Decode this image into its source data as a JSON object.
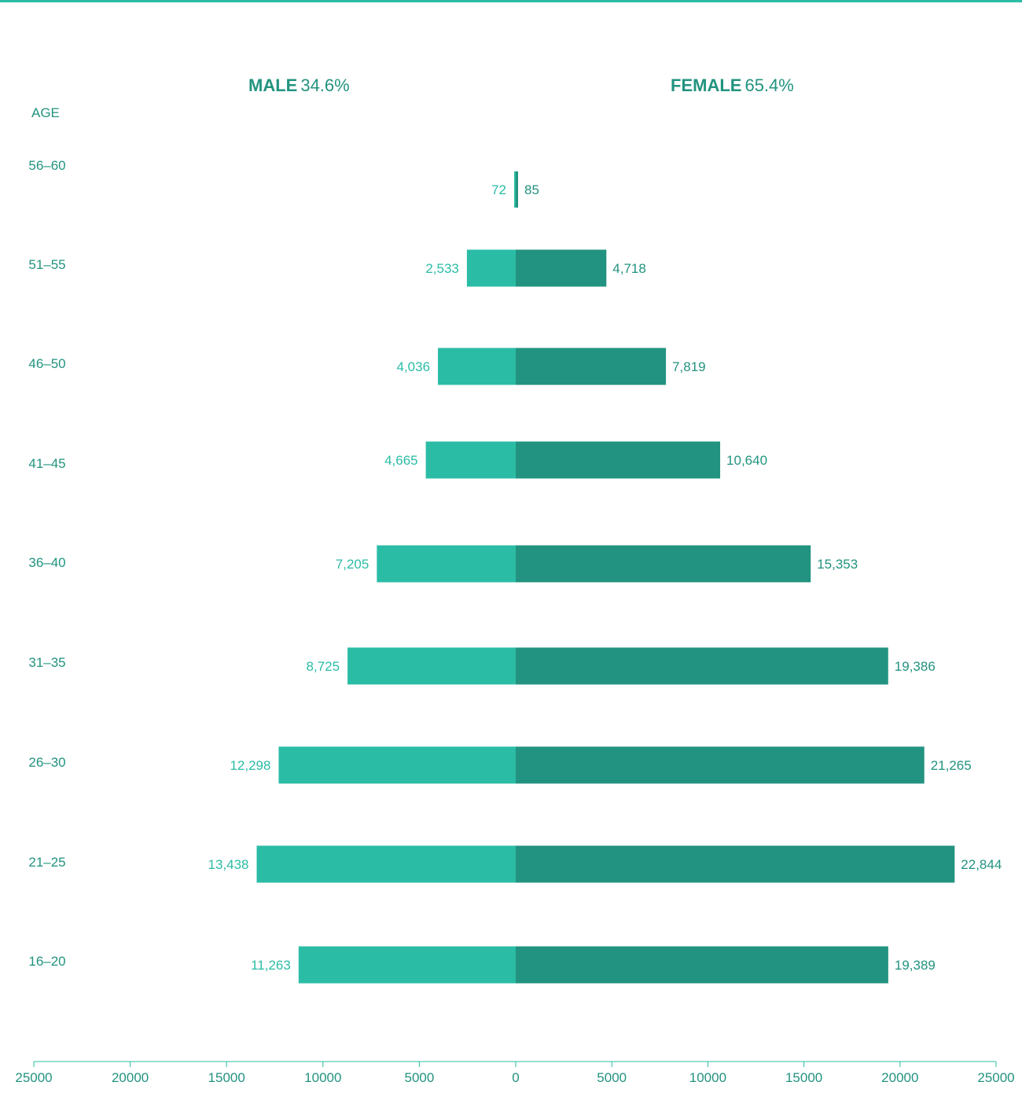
{
  "colors": {
    "male": "#2bbca6",
    "female": "#229380",
    "text": "#22937f",
    "axis": "#2bbca6"
  },
  "header": {
    "male_label": "MALE",
    "male_pct": "34.6%",
    "female_label": "FEMALE",
    "female_pct": "65.4%",
    "age_title": "AGE"
  },
  "chart_data": {
    "type": "bar",
    "orientation": "horizontal",
    "layout": "population-pyramid",
    "categories": [
      "56–60",
      "51–55",
      "46–50",
      "41–45",
      "36–40",
      "31–35",
      "26–30",
      "21–25",
      "16–20"
    ],
    "series": [
      {
        "name": "MALE",
        "values": [
          72,
          2533,
          4036,
          4665,
          7205,
          8725,
          12298,
          13438,
          11263
        ],
        "labels": [
          "72",
          "2,533",
          "4,036",
          "4,665",
          "7,205",
          "8,725",
          "12,298",
          "13,438",
          "11,263"
        ]
      },
      {
        "name": "FEMALE",
        "values": [
          85,
          4718,
          7819,
          10640,
          15353,
          19386,
          21265,
          22844,
          19389
        ],
        "labels": [
          "85",
          "4,718",
          "7,819",
          "10,640",
          "15,353",
          "19,386",
          "21,265",
          "22,844",
          "19,389"
        ]
      }
    ],
    "xlim": [
      -25000,
      25000
    ],
    "x_tick_labels": [
      "25000",
      "20000",
      "15000",
      "10000",
      "5000",
      "0",
      "5000",
      "10000",
      "15000",
      "20000",
      "25000"
    ],
    "grid": false,
    "legend": "top"
  }
}
